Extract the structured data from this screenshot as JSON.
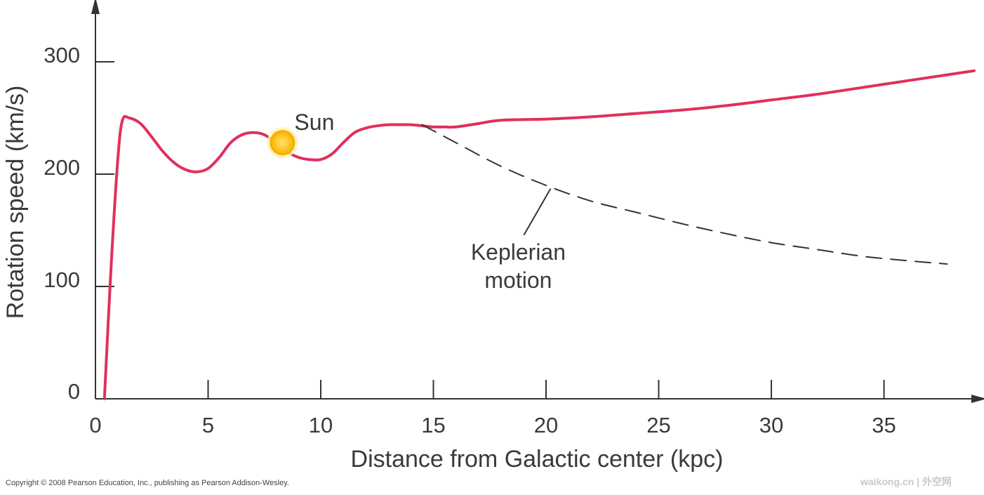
{
  "chart_data": {
    "type": "line",
    "xlabel": "Distance from Galactic center (kpc)",
    "ylabel": "Rotation speed (km/s)",
    "xlim": [
      0,
      39
    ],
    "ylim": [
      0,
      345
    ],
    "xticks": [
      0,
      5,
      10,
      15,
      20,
      25,
      30,
      35
    ],
    "yticks": [
      0,
      100,
      200,
      300
    ],
    "grid": false,
    "series": [
      {
        "color": "#e0305c",
        "style": "solid",
        "x": [
          0.4,
          0.7,
          1.0,
          1.2,
          1.5,
          2.0,
          2.5,
          3.0,
          3.5,
          4.0,
          4.5,
          5.0,
          5.5,
          6.0,
          6.5,
          7.0,
          7.5,
          8.0,
          8.5,
          9.0,
          9.5,
          10.0,
          10.5,
          11.0,
          11.5,
          12.0,
          12.5,
          13.0,
          13.5,
          14.0,
          14.5,
          15.0,
          15.5,
          16.0,
          17.0,
          18.0,
          20.0,
          22.0,
          24.0,
          26.0,
          28.0,
          30.0,
          32.0,
          34.0,
          36.0,
          38.0,
          39.0
        ],
        "values": [
          0,
          120,
          215,
          248,
          250,
          245,
          233,
          220,
          210,
          204,
          202,
          205,
          215,
          228,
          235,
          237,
          235,
          228,
          220,
          215,
          213,
          213,
          218,
          228,
          237,
          241,
          243,
          244,
          244,
          244,
          243,
          242,
          242,
          242,
          245,
          248,
          249,
          251,
          254,
          257,
          261,
          266,
          271,
          277,
          283,
          289,
          292
        ]
      },
      {
        "name": "Keplerian motion",
        "color": "#333333",
        "style": "dashed",
        "x": [
          14.5,
          16,
          18,
          20,
          22,
          24,
          26,
          28,
          30,
          32,
          34,
          36,
          37.8
        ],
        "values": [
          244,
          228,
          207,
          190,
          176,
          166,
          156,
          147,
          139,
          133,
          127,
          123,
          120
        ]
      }
    ],
    "annotations": [
      {
        "text": "Sun",
        "x": 8.3,
        "y": 228
      },
      {
        "text_lines": [
          "Keplerian",
          "motion"
        ],
        "points_to": {
          "x": 20.2,
          "y": 187
        }
      }
    ]
  },
  "footer": {
    "copyright": "Copyright © 2008 Pearson Education, Inc., publishing as Pearson Addison-Wesley.",
    "watermark": "waikong.cn | 外空网"
  }
}
